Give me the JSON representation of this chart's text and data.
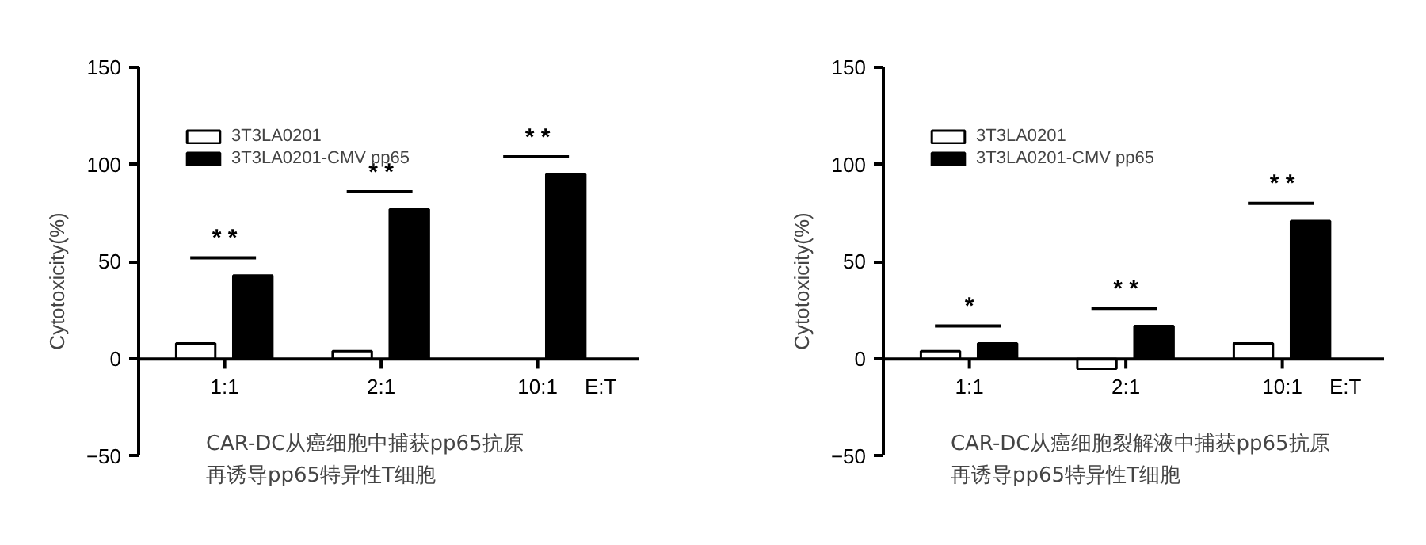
{
  "chart_data": [
    {
      "type": "bar",
      "categories": [
        "1:1",
        "2:1",
        "10:1"
      ],
      "xlabel": "E:T",
      "ylabel": "Cytotoxicity(%)",
      "series": [
        {
          "name": "3T3LA0201",
          "color": "#ffffff",
          "values": [
            8,
            4,
            null
          ]
        },
        {
          "name": "3T3LA0201-CMV pp65",
          "color": "#000000",
          "values": [
            43,
            77,
            95
          ]
        }
      ],
      "ylim": [
        -50,
        150
      ],
      "yticks": [
        -50,
        0,
        50,
        100,
        150
      ],
      "grid": false,
      "legend": "top left",
      "annotations": [
        "* *",
        "* *",
        "* *",
        "CAR-DC从癌细胞中捕获pp65抗原",
        "再诱导pp65特异性T细胞"
      ]
    },
    {
      "type": "bar",
      "categories": [
        "1:1",
        "2:1",
        "10:1"
      ],
      "xlabel": "E:T",
      "ylabel": "Cytotoxicity(%)",
      "series": [
        {
          "name": "3T3LA0201",
          "color": "#ffffff",
          "values": [
            4,
            -5,
            8
          ]
        },
        {
          "name": "3T3LA0201-CMV pp65",
          "color": "#000000",
          "values": [
            8,
            17,
            71
          ]
        }
      ],
      "ylim": [
        -50,
        150
      ],
      "yticks": [
        -50,
        0,
        50,
        100,
        150
      ],
      "grid": false,
      "legend": "top left",
      "annotations": [
        "*",
        "* *",
        "* *",
        "CAR-DC从癌细胞裂解液中捕获pp65抗原",
        "再诱导pp65特异性T细胞"
      ]
    }
  ]
}
